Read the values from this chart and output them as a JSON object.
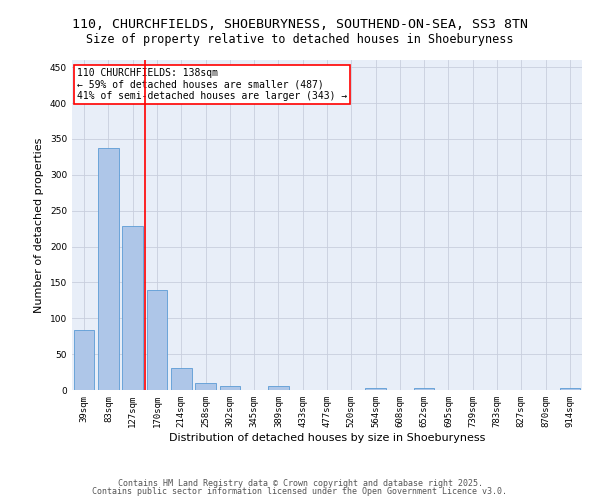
{
  "title_line1": "110, CHURCHFIELDS, SHOEBURYNESS, SOUTHEND-ON-SEA, SS3 8TN",
  "title_line2": "Size of property relative to detached houses in Shoeburyness",
  "xlabel": "Distribution of detached houses by size in Shoeburyness",
  "ylabel": "Number of detached properties",
  "categories": [
    "39sqm",
    "83sqm",
    "127sqm",
    "170sqm",
    "214sqm",
    "258sqm",
    "302sqm",
    "345sqm",
    "389sqm",
    "433sqm",
    "477sqm",
    "520sqm",
    "564sqm",
    "608sqm",
    "652sqm",
    "695sqm",
    "739sqm",
    "783sqm",
    "827sqm",
    "870sqm",
    "914sqm"
  ],
  "values": [
    84,
    337,
    229,
    139,
    30,
    10,
    5,
    0,
    5,
    0,
    0,
    0,
    3,
    0,
    3,
    0,
    0,
    0,
    0,
    0,
    3
  ],
  "bar_color": "#aec6e8",
  "bar_edge_color": "#5b9bd5",
  "background_color": "#e8eef8",
  "grid_color": "#c8cedd",
  "vline_x": 2.5,
  "vline_color": "red",
  "annotation_title": "110 CHURCHFIELDS: 138sqm",
  "annotation_line1": "← 59% of detached houses are smaller (487)",
  "annotation_line2": "41% of semi-detached houses are larger (343) →",
  "annotation_box_color": "red",
  "ylim": [
    0,
    460
  ],
  "yticks": [
    0,
    50,
    100,
    150,
    200,
    250,
    300,
    350,
    400,
    450
  ],
  "footer_line1": "Contains HM Land Registry data © Crown copyright and database right 2025.",
  "footer_line2": "Contains public sector information licensed under the Open Government Licence v3.0.",
  "title_fontsize": 9.5,
  "subtitle_fontsize": 8.5,
  "axis_label_fontsize": 8,
  "tick_fontsize": 6.5,
  "annotation_fontsize": 7,
  "footer_fontsize": 6
}
